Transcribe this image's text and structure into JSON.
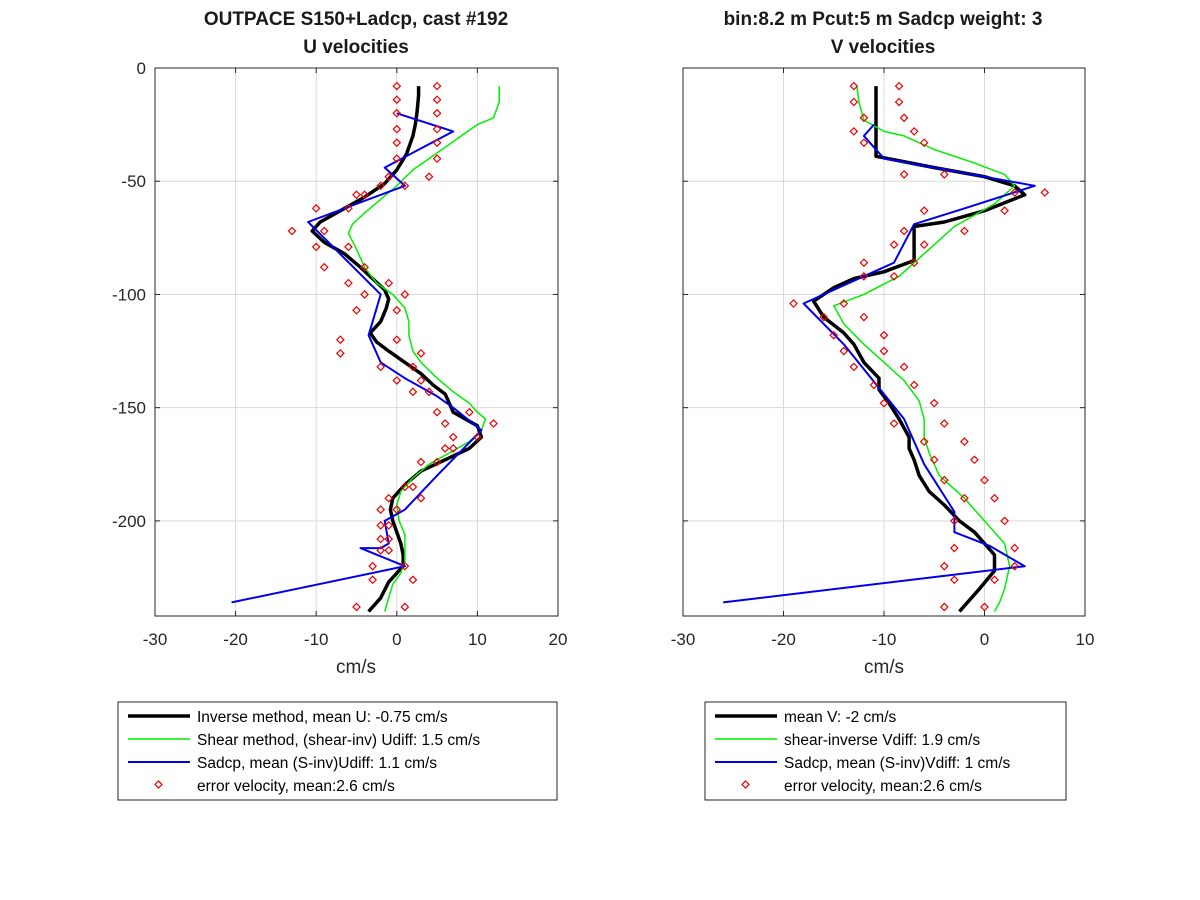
{
  "chart_data": [
    {
      "type": "line",
      "title": [
        "OUTPACE S150+Ladcp, cast #192",
        "U velocities"
      ],
      "xlabel": "cm/s",
      "ylabel": "",
      "xlim": [
        -30,
        20
      ],
      "ylim": [
        -242,
        0
      ],
      "xticks": [
        -30,
        -20,
        -10,
        0,
        10,
        20
      ],
      "yticks": [
        0,
        -50,
        -100,
        -150,
        -200
      ],
      "grid": true,
      "colors": {
        "inverse": "#000000",
        "shear": "#00ee00",
        "sadcp": "#0000ee",
        "error": "#ee0000"
      },
      "legend": {
        "position": "below",
        "entries": [
          "Inverse method, mean U:  -0.75 cm/s",
          "Shear method, (shear-inv)  Udiff:  1.5 cm/s",
          "Sadcp, mean (S-inv)Udiff: 1.1 cm/s",
          "error velocity, mean:2.6 cm/s"
        ]
      },
      "series": [
        {
          "name": "Inverse method, mean U:  -0.75 cm/s",
          "style": "thick",
          "x": [
            2.7,
            2.7,
            2.6,
            2.5,
            2.3,
            2.0,
            1.2,
            0.0,
            -1.5,
            -4.0,
            -7.0,
            -9.5,
            -10.5,
            -9.0,
            -6.5,
            -4.5,
            -3.0,
            -1.5,
            -1.0,
            -1.3,
            -2.0,
            -3.3,
            -2.5,
            -1.0,
            1.0,
            3.0,
            4.5,
            6.0,
            6.5,
            7.0,
            10.0,
            10.5,
            9.0,
            6.0,
            3.0,
            1.0,
            -0.5,
            -0.8,
            -0.5,
            0.0,
            0.5,
            0.8,
            0.8,
            -1.0,
            -2.0,
            -3.5
          ],
          "y": [
            -8,
            -12,
            -16,
            -20,
            -25,
            -30,
            -38,
            -45,
            -51,
            -57,
            -63,
            -68,
            -72,
            -77,
            -82,
            -88,
            -93,
            -98,
            -102,
            -106,
            -112,
            -117,
            -121,
            -125,
            -130,
            -135,
            -140,
            -144,
            -148,
            -152,
            -158,
            -163,
            -168,
            -173,
            -178,
            -184,
            -190,
            -195,
            -200,
            -205,
            -210,
            -215,
            -220,
            -227,
            -234,
            -240
          ]
        },
        {
          "name": "Shear method, (shear-inv)  Udiff:  1.5 cm/s",
          "style": "thin",
          "x": [
            12.7,
            12.7,
            12.0,
            10.0,
            8.0,
            6.0,
            4.0,
            2.0,
            0.0,
            -2.0,
            -4.0,
            -5.5,
            -6.0,
            -5.0,
            -4.0,
            -2.5,
            -0.5,
            1.0,
            1.5,
            1.5,
            2.0,
            3.0,
            5.0,
            7.0,
            9.0,
            10.0,
            11.0,
            10.5,
            9.0,
            6.5,
            4.0,
            2.0,
            0.5,
            0.0,
            0.3,
            1.0,
            1.0,
            1.0,
            0.5,
            -0.5,
            -1.0,
            -1.5
          ],
          "y": [
            -8,
            -15,
            -22,
            -25,
            -30,
            -35,
            -40,
            -45,
            -52,
            -58,
            -64,
            -69,
            -73,
            -80,
            -88,
            -95,
            -100,
            -106,
            -112,
            -118,
            -125,
            -130,
            -137,
            -143,
            -148,
            -152,
            -155,
            -160,
            -165,
            -170,
            -175,
            -181,
            -187,
            -193,
            -200,
            -206,
            -212,
            -218,
            -223,
            -228,
            -234,
            -240
          ]
        },
        {
          "name": "Sadcp, mean (S-inv)Udiff: 1.1 cm/s",
          "style": "normal",
          "x": [
            0.0,
            7.0,
            -1.5,
            1.0,
            -11.0,
            -2.0,
            -3.5,
            -2.0,
            1.0,
            5.0,
            7.0,
            10.5,
            5.0,
            1.0,
            -1.5,
            -1.0,
            -2.0,
            -4.5,
            1.0,
            -20.5
          ],
          "y": [
            -20,
            -28,
            -44,
            -52,
            -68,
            -100,
            -118,
            -130,
            -137,
            -145,
            -150,
            -160,
            -180,
            -195,
            -200,
            -210,
            -212,
            -212,
            -220,
            -236
          ]
        },
        {
          "name": "error velocity, mean:2.6 cm/s",
          "style": "markers",
          "x": [
            0,
            5,
            0,
            5,
            0,
            5,
            0,
            5,
            0,
            5,
            0,
            5,
            -1,
            4,
            -2,
            1,
            -5,
            -4,
            -6,
            -10,
            -13,
            -9,
            -10,
            -6,
            -9,
            -4,
            -6,
            -1,
            -4,
            1,
            -5,
            0,
            -7,
            0,
            -7,
            3,
            -2,
            2,
            0,
            3,
            2,
            4,
            5,
            9,
            6,
            12,
            7,
            10,
            6,
            7,
            3,
            5,
            2,
            1,
            3,
            -1,
            0,
            -2,
            -2,
            -1,
            -1,
            -2,
            -2,
            -1,
            -3,
            1,
            -3,
            2,
            -5,
            1
          ],
          "y": [
            -8,
            -8,
            -14,
            -14,
            -20,
            -20,
            -27,
            -27,
            -33,
            -33,
            -40,
            -40,
            -48,
            -48,
            -52,
            -52,
            -56,
            -56,
            -62,
            -62,
            -72,
            -72,
            -79,
            -79,
            -88,
            -88,
            -95,
            -95,
            -100,
            -100,
            -107,
            -107,
            -120,
            -120,
            -126,
            -126,
            -132,
            -132,
            -138,
            -138,
            -143,
            -143,
            -152,
            -152,
            -157,
            -157,
            -163,
            -163,
            -168,
            -168,
            -174,
            -174,
            -185,
            -185,
            -190,
            -190,
            -195,
            -195,
            -202,
            -202,
            -208,
            -208,
            -213,
            -213,
            -220,
            -220,
            -226,
            -226,
            -238,
            -238
          ]
        }
      ]
    },
    {
      "type": "line",
      "title": [
        "bin:8.2 m  Pcut:5 m  Sadcp weight: 3",
        "V velocities"
      ],
      "xlabel": "cm/s",
      "ylabel": "",
      "xlim": [
        -30,
        10
      ],
      "ylim": [
        -242,
        0
      ],
      "xticks": [
        -30,
        -20,
        -10,
        0,
        10
      ],
      "yticks": [
        0,
        -50,
        -100,
        -150,
        -200
      ],
      "grid": true,
      "colors": {
        "inverse": "#000000",
        "shear": "#00ee00",
        "sadcp": "#0000ee",
        "error": "#ee0000"
      },
      "legend": {
        "position": "below",
        "entries": [
          "mean V:  -2 cm/s",
          "shear-inverse Vdiff:  1.9 cm/s",
          "Sadcp, mean (S-inv)Vdiff: 1 cm/s",
          "error velocity, mean:2.6 cm/s"
        ]
      },
      "series": [
        {
          "name": "mean V:  -2 cm/s",
          "style": "thick",
          "x": [
            -10.8,
            -10.8,
            -10.8,
            -10.8,
            -10.8,
            -10.8,
            -10.8,
            -5,
            0,
            3,
            4,
            0,
            -4,
            -7,
            -7,
            -7,
            -7,
            -10,
            -13,
            -15,
            -17,
            -16,
            -14,
            -13,
            -12,
            -10.5,
            -10.5,
            -9.5,
            -8.5,
            -7.5,
            -7.5,
            -7,
            -6.5,
            -5.5,
            -4,
            -2.5,
            -1,
            0,
            1,
            1,
            -0.5,
            -2.5
          ],
          "y": [
            -8,
            -12,
            -17,
            -22,
            -27,
            -32,
            -39,
            -44,
            -48,
            -52,
            -56,
            -63,
            -68,
            -70,
            -75,
            -80,
            -85,
            -90,
            -93,
            -97,
            -103,
            -110,
            -117,
            -122,
            -130,
            -137,
            -142,
            -148,
            -155,
            -163,
            -168,
            -173,
            -180,
            -187,
            -193,
            -200,
            -205,
            -210,
            -215,
            -222,
            -230,
            -240
          ]
        },
        {
          "name": "shear-inverse Vdiff:  1.9 cm/s",
          "style": "thin",
          "x": [
            -12.7,
            -12.5,
            -12,
            -10,
            -8,
            -5,
            -1,
            2,
            3,
            1,
            -3,
            -6,
            -8.5,
            -12,
            -15,
            -14,
            -12,
            -10,
            -8,
            -6.5,
            -6,
            -6,
            -5.5,
            -4.5,
            -2,
            0,
            2,
            2.5,
            2,
            1.5,
            1
          ],
          "y": [
            -8,
            -15,
            -23,
            -28,
            -30,
            -36,
            -42,
            -47,
            -52,
            -60,
            -70,
            -82,
            -92,
            -100,
            -105,
            -113,
            -122,
            -130,
            -138,
            -147,
            -155,
            -163,
            -170,
            -180,
            -190,
            -200,
            -210,
            -220,
            -230,
            -236,
            -240
          ]
        },
        {
          "name": "Sadcp, mean (S-inv)Vdiff: 1 cm/s",
          "style": "normal",
          "x": [
            -11,
            -12,
            -10,
            5,
            -2,
            -7,
            -9,
            -18,
            -14,
            -8,
            -6,
            -3,
            -3,
            0.5,
            4,
            -26
          ],
          "y": [
            -25,
            -30,
            -40,
            -52,
            -62,
            -69,
            -86,
            -104,
            -122,
            -155,
            -175,
            -196,
            -205,
            -211,
            -220,
            -236
          ]
        },
        {
          "name": "error velocity, mean:2.6 cm/s",
          "style": "markers",
          "x": [
            -13,
            -8.5,
            -13,
            -8.5,
            -12,
            -8,
            -13,
            -7,
            -12,
            -6,
            -4,
            -8,
            6,
            3,
            2,
            -6,
            -8,
            -2,
            -9,
            -6,
            -12,
            -7,
            -12,
            -9,
            -19,
            -14,
            -16,
            -12,
            -15,
            -10,
            -14,
            -10,
            -13,
            -8,
            -11,
            -7,
            -10,
            -5,
            -9,
            -4,
            -6,
            -2,
            -5,
            -1,
            -4,
            0,
            -2,
            1,
            -3,
            2,
            -3,
            3,
            -4,
            3,
            -3,
            1,
            -4,
            0
          ],
          "y": [
            -8,
            -8,
            -15,
            -15,
            -22,
            -22,
            -28,
            -28,
            -33,
            -33,
            -47,
            -47,
            -55,
            -55,
            -63,
            -63,
            -72,
            -72,
            -78,
            -78,
            -86,
            -86,
            -92,
            -92,
            -104,
            -104,
            -110,
            -110,
            -118,
            -118,
            -125,
            -125,
            -132,
            -132,
            -140,
            -140,
            -148,
            -148,
            -157,
            -157,
            -165,
            -165,
            -173,
            -173,
            -182,
            -182,
            -190,
            -190,
            -200,
            -200,
            -212,
            -212,
            -220,
            -220,
            -226,
            -226,
            -238,
            -238
          ]
        }
      ]
    }
  ]
}
